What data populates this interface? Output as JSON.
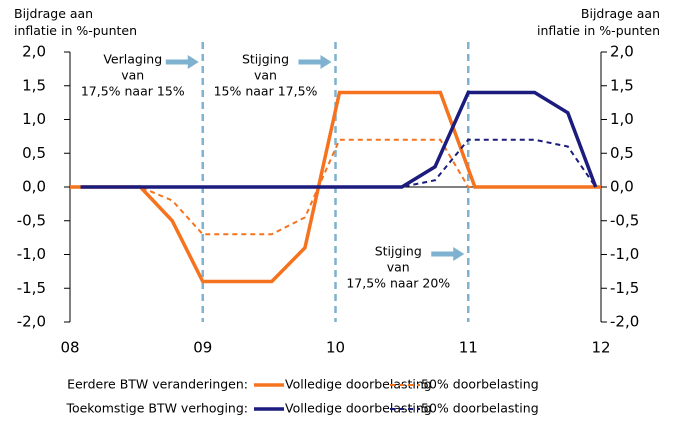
{
  "chart_data": {
    "type": "line",
    "ylabel": "Bijdrage aan inflatie in %-punten",
    "y2label": "Bijdrage aan inflatie in %-punten",
    "xlim": [
      8,
      12
    ],
    "xticks": [
      {
        "value": 8,
        "label": "08"
      },
      {
        "value": 9,
        "label": "09"
      },
      10,
      11,
      12
    ],
    "ylim": [
      -2,
      2
    ],
    "yticks": [
      {
        "value": -2,
        "label": "-2,0"
      },
      {
        "value": -1.5,
        "label": "-1,5"
      },
      {
        "value": -1,
        "label": "-1,0"
      },
      {
        "value": -0.5,
        "label": "-0,5"
      },
      {
        "value": 0,
        "label": "0,0"
      },
      {
        "value": 0.5,
        "label": "0,5"
      },
      {
        "value": 1,
        "label": "1,0"
      },
      {
        "value": 1.5,
        "label": "1,5"
      },
      {
        "value": 2,
        "label": "2,0"
      }
    ],
    "y2lim": [
      -2,
      2
    ],
    "y2ticks": [
      {
        "value": -2,
        "label": "-2,0"
      },
      {
        "value": -1.5,
        "label": "-1,5"
      },
      {
        "value": -1,
        "label": "-1,0"
      },
      {
        "value": -0.5,
        "label": "-0,5"
      },
      {
        "value": 0,
        "label": "0,0"
      },
      {
        "value": 0.5,
        "label": "0,5"
      },
      {
        "value": 1,
        "label": "1,0"
      },
      {
        "value": 1.5,
        "label": "1,5"
      },
      {
        "value": 2,
        "label": "2,0"
      }
    ],
    "legend_groups": [
      "Eerdere BTW veranderingen:",
      "Toekomstige BTW verhoging:"
    ],
    "series": [
      {
        "name": "Volledige doorbelasting",
        "color": "#f5731e",
        "dashed": false,
        "x": [
          8.0,
          8.53,
          8.77,
          9.0,
          9.52,
          9.77,
          10.03,
          10.79,
          11.05,
          12.0
        ],
        "values": [
          0,
          0,
          -0.5,
          -1.4,
          -1.4,
          -0.9,
          1.4,
          1.4,
          0,
          0
        ]
      },
      {
        "name": "50% doorbelasting",
        "color": "#f5731e",
        "dashed": true,
        "x": [
          8.0,
          8.53,
          8.77,
          9.0,
          9.52,
          9.77,
          10.03,
          10.79,
          11.0,
          12.0
        ],
        "values": [
          0,
          0,
          -0.2,
          -0.7,
          -0.7,
          -0.45,
          0.7,
          0.7,
          0,
          0
        ]
      },
      {
        "name": "Volledige doorbelasting",
        "color": "#1c1c7e",
        "dashed": false,
        "x": [
          8.08,
          10.5,
          10.75,
          11.0,
          11.5,
          11.75,
          11.96
        ],
        "values": [
          0,
          0,
          0.3,
          1.4,
          1.4,
          1.1,
          0
        ]
      },
      {
        "name": "50% doorbelasting",
        "color": "#1c1c7e",
        "dashed": true,
        "x": [
          8.08,
          10.5,
          10.75,
          11.0,
          11.5,
          11.75,
          11.96
        ],
        "values": [
          0,
          0,
          0.1,
          0.7,
          0.7,
          0.6,
          0
        ]
      }
    ],
    "annotations": [
      {
        "x": 9,
        "lines": [
          "Verlaging",
          "van",
          "17,5% naar 15%"
        ]
      },
      {
        "x": 10,
        "lines": [
          "Stijging",
          "van",
          "15% naar 17,5%"
        ]
      },
      {
        "x": 11,
        "lines": [
          "Stijging",
          "van",
          "17,5% naar 20%"
        ]
      }
    ]
  }
}
